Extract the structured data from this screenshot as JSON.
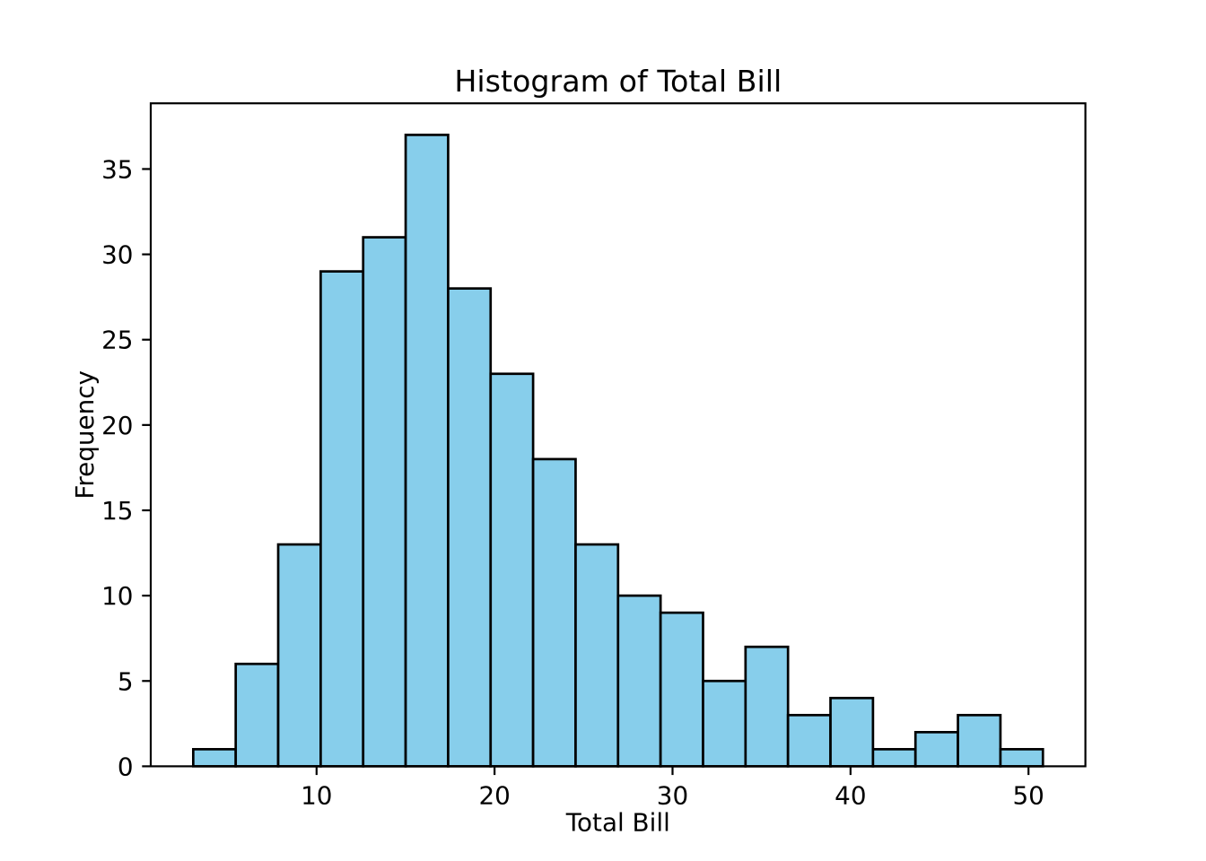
{
  "chart_data": {
    "type": "histogram",
    "title": "Histogram of Total Bill",
    "xlabel": "Total Bill",
    "ylabel": "Frequency",
    "bin_edges": [
      3.07,
      5.457,
      7.844,
      10.231,
      12.618,
      15.005,
      17.392,
      19.779,
      22.166,
      24.553,
      26.94,
      29.327,
      31.714,
      34.101,
      36.488,
      38.875,
      41.262,
      43.649,
      46.036,
      48.423,
      50.81
    ],
    "counts": [
      1,
      6,
      13,
      29,
      31,
      37,
      28,
      23,
      18,
      13,
      10,
      9,
      5,
      7,
      3,
      4,
      1,
      2,
      3,
      1
    ],
    "xticks": [
      10,
      20,
      30,
      40,
      50
    ],
    "yticks": [
      0,
      5,
      10,
      15,
      20,
      25,
      30,
      35
    ],
    "xlim": [
      0.683,
      53.197
    ],
    "ylim": [
      0,
      38.85
    ],
    "grid": false,
    "legend": null,
    "colors": {
      "bar_fill": "#87CEEB",
      "bar_edge": "#000000",
      "spine": "#000000",
      "background": "#ffffff"
    }
  }
}
